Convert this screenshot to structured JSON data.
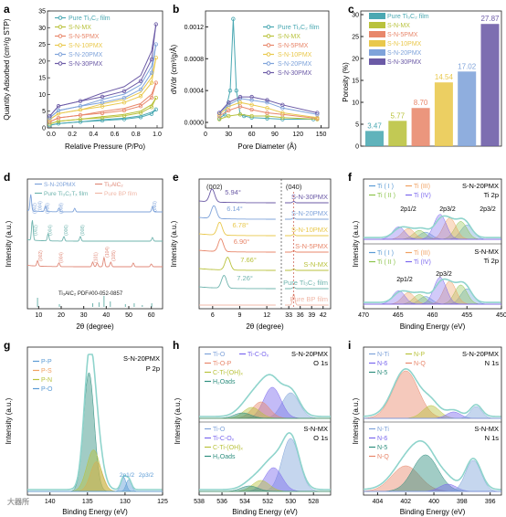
{
  "colors": {
    "pure": "#4aa8b2",
    "mx": "#b9c23c",
    "p5": "#e8876b",
    "p10": "#e9c84c",
    "p20": "#7fa3da",
    "p30": "#6b5aa6",
    "xrd_pure": "#6fb4ae",
    "max": "#e08a7a",
    "bp": "#f0b8a8",
    "axis": "#222222",
    "label": "#000000"
  },
  "panels": [
    {
      "id": "a",
      "letter": "a",
      "xlabel": "Relative Pressure (P/Po)",
      "ylabel": "Quantity Adsorbed (cm³/g STP)",
      "xticks": [
        "0.0",
        "0.2",
        "0.4",
        "0.6",
        "0.8",
        "1.0"
      ],
      "yticks": [
        "0",
        "5",
        "10",
        "15",
        "20",
        "25",
        "30",
        "35"
      ],
      "legend": [
        "Pure Ti₃C₂ film",
        "S-N-MX",
        "S-N-5PMX",
        "S-N-10PMX",
        "S-N-20PMX",
        "S-N-30PMX"
      ]
    },
    {
      "id": "b",
      "letter": "b",
      "xlabel": "Pore Diameter (Å)",
      "ylabel": "dV/dr (cm³/g/Å)",
      "xticks": [
        "0",
        "30",
        "60",
        "90",
        "120",
        "150"
      ],
      "yticks": [
        "0.0000",
        "0.0004",
        "0.0008",
        "0.0012"
      ],
      "legend": [
        "Pure Ti₃C₂ film",
        "S-N-MX",
        "S-N-5PMX",
        "S-N-10PMX",
        "S-N-20PMX",
        "S-N-30PMX"
      ]
    },
    {
      "id": "c",
      "letter": "c",
      "ylabel": "Porosity (%)",
      "yticks": [
        "0",
        "5",
        "10",
        "15",
        "20",
        "25",
        "30"
      ],
      "legend": [
        "Pure Ti₃C₂ film",
        "S-N-MX",
        "S-N-5PMX",
        "S-N-10PMX",
        "S-N-20PMX",
        "S-N-30PMX"
      ]
    },
    {
      "id": "d",
      "letter": "d",
      "xlabel": "2θ (degree)",
      "ylabel": "Intensity (a.u.)",
      "xticks": [
        "10",
        "20",
        "30",
        "40",
        "50",
        "60"
      ],
      "legend": [
        "S-N-20PMX",
        "Ti₃AlC₂",
        "Pure Ti₃C₂Tₓ film",
        "Pure BP film"
      ],
      "peaks_pure": [
        "(002)",
        "(004)",
        "(006)",
        "(008)"
      ],
      "peaks_max": [
        "(002)",
        "(004)",
        "(101)",
        "(104)",
        "(105)"
      ],
      "peaks_20": [
        "(002)",
        "(004)",
        "(006)",
        "(008)",
        "(060)"
      ],
      "pdf": "Ti₃AlC₂ PDF#00-052-0857"
    },
    {
      "id": "e",
      "letter": "e",
      "xlabel": "2θ (degree)",
      "ylabel": "Intensity (a.u.)",
      "xticks": [
        "6",
        "9",
        "12",
        "33",
        "36",
        "39",
        "42"
      ],
      "traces": [
        "S-N-30PMX",
        "S-N-20PMX",
        "S-N-10PMX",
        "S-N-5PMX",
        "S-N-MX",
        "Pure Ti₃C₂ film",
        "Pure BP film"
      ],
      "angles": [
        "5.94°",
        "6.14°",
        "6.78°",
        "6.90°",
        "7.66°",
        "7.26°"
      ],
      "miller": [
        "(002)",
        "(040)"
      ]
    },
    {
      "id": "f",
      "letter": "f",
      "xlabel": "Binding Energy (eV)",
      "ylabel": "Intensity (a.u.)",
      "xticks": [
        "470",
        "465",
        "460",
        "455",
        "450"
      ],
      "top": {
        "sample": "S-N-20PMX",
        "core": "Ti 2p",
        "labels": [
          "2p1/2",
          "2p3/2",
          "2p3/2"
        ]
      },
      "bottom": {
        "sample": "S-N-MX",
        "core": "Ti 2p",
        "labels": [
          "2p1/2",
          "2p3/2"
        ]
      },
      "legend": [
        "Ti ( I )",
        "Ti ( II )",
        "Ti (III)",
        "Ti (IV)"
      ]
    },
    {
      "id": "g",
      "letter": "g",
      "xlabel": "Binding Energy (eV)",
      "ylabel": "Intensity (a.u.)",
      "xticks": [
        "140",
        "135",
        "130",
        "125"
      ],
      "sample": "S-N-20PMX",
      "core": "P 2p",
      "legend": [
        "P-P",
        "P-S",
        "P-N",
        "P-O"
      ],
      "labels": [
        "2p1/2",
        "2p3/2"
      ]
    },
    {
      "id": "h",
      "letter": "h",
      "xlabel": "Binding Energy (eV)",
      "ylabel": "Intensity (a.u.)",
      "xticks": [
        "538",
        "536",
        "534",
        "532",
        "530",
        "528"
      ],
      "top": {
        "sample": "S-N-20PMX",
        "core": "O 1s",
        "legend": [
          "Ti-O",
          "Ti-C-Oₓ",
          "Ti-O-P",
          "C-Ti-(OH)ₓ",
          "H₂Oads"
        ]
      },
      "bottom": {
        "sample": "S-N-MX",
        "core": "O 1s",
        "legend": [
          "Ti-O",
          "Ti-C-Oₓ",
          "C-Ti-(OH)ₓ",
          "H₂Oads"
        ]
      }
    },
    {
      "id": "i",
      "letter": "i",
      "xlabel": "Binding Energy (eV)",
      "ylabel": "Intensity (a.u.)",
      "xticks": [
        "404",
        "402",
        "400",
        "398",
        "396"
      ],
      "top": {
        "sample": "S-N-20PMX",
        "core": "N 1s",
        "legend": [
          "N-Ti",
          "N-P",
          "N-6",
          "N-Q",
          "N-5"
        ]
      },
      "bottom": {
        "sample": "S-N-MX",
        "core": "N 1s",
        "legend": [
          "N-Ti",
          "N-6",
          "N-5",
          "N-Q"
        ]
      }
    }
  ],
  "chart_data": [
    {
      "panel": "a",
      "type": "line",
      "title": "",
      "xlabel": "Relative Pressure (P/Po)",
      "ylabel": "Quantity Adsorbed (cm³/g STP)",
      "xlim": [
        0,
        1.05
      ],
      "ylim": [
        0,
        35
      ],
      "series": [
        {
          "name": "Pure Ti₃C₂ film",
          "x": [
            0.02,
            0.1,
            0.3,
            0.5,
            0.7,
            0.85,
            0.95,
            0.99
          ],
          "y": [
            0.8,
            1.3,
            1.8,
            2.2,
            2.6,
            3.2,
            4.2,
            5.5
          ]
        },
        {
          "name": "S-N-MX",
          "x": [
            0.02,
            0.1,
            0.3,
            0.5,
            0.7,
            0.85,
            0.95,
            0.99
          ],
          "y": [
            1.2,
            2.0,
            2.6,
            3.0,
            3.6,
            4.5,
            6.2,
            9.0
          ]
        },
        {
          "name": "S-N-5PMX",
          "x": [
            0.02,
            0.1,
            0.3,
            0.5,
            0.7,
            0.85,
            0.95,
            0.99
          ],
          "y": [
            1.8,
            3.0,
            3.8,
            4.4,
            5.2,
            6.5,
            9.0,
            13.5
          ]
        },
        {
          "name": "S-N-10PMX",
          "x": [
            0.02,
            0.1,
            0.3,
            0.5,
            0.7,
            0.85,
            0.95,
            0.99
          ],
          "y": [
            2.5,
            4.3,
            5.4,
            6.4,
            7.6,
            9.5,
            13.5,
            21.0
          ]
        },
        {
          "name": "S-N-20PMX",
          "x": [
            0.02,
            0.1,
            0.3,
            0.5,
            0.7,
            0.85,
            0.95,
            0.99
          ],
          "y": [
            3.0,
            5.2,
            6.5,
            7.6,
            9.0,
            11.5,
            16.5,
            25.0
          ]
        },
        {
          "name": "S-N-30PMX",
          "x": [
            0.02,
            0.1,
            0.3,
            0.5,
            0.7,
            0.85,
            0.95,
            0.99
          ],
          "y": [
            3.5,
            6.5,
            8.0,
            9.3,
            11.0,
            14.0,
            20.5,
            31.0
          ]
        }
      ]
    },
    {
      "panel": "b",
      "type": "line",
      "title": "",
      "xlabel": "Pore Diameter (Å)",
      "ylabel": "dV/dr (cm³/g/Å)",
      "xlim": [
        0,
        160
      ],
      "ylim": [
        0,
        0.0014
      ],
      "series": [
        {
          "name": "Pure Ti₃C₂ film",
          "x": [
            18,
            25,
            32,
            36,
            40,
            45,
            50,
            60,
            80,
            100,
            140
          ],
          "y": [
            5e-05,
            0.0001,
            0.0004,
            0.0013,
            0.0004,
            0.0001,
            8e-05,
            6e-05,
            5e-05,
            4e-05,
            4e-05
          ]
        },
        {
          "name": "S-N-MX",
          "x": [
            18,
            30,
            45,
            60,
            80,
            100,
            145
          ],
          "y": [
            4e-05,
            8e-05,
            0.0001,
            8e-05,
            8e-05,
            6e-05,
            4e-05
          ]
        },
        {
          "name": "S-N-5PMX",
          "x": [
            18,
            30,
            45,
            60,
            80,
            100,
            145
          ],
          "y": [
            8e-05,
            0.00015,
            0.0002,
            0.00016,
            0.00012,
            0.0001,
            5e-05
          ]
        },
        {
          "name": "S-N-10PMX",
          "x": [
            18,
            30,
            45,
            60,
            80,
            100,
            145
          ],
          "y": [
            0.0001,
            0.0002,
            0.00025,
            0.00022,
            0.00018,
            0.00012,
            6e-05
          ]
        },
        {
          "name": "S-N-20PMX",
          "x": [
            18,
            30,
            45,
            60,
            80,
            100,
            145
          ],
          "y": [
            0.00012,
            0.00022,
            0.0003,
            0.00028,
            0.00025,
            0.00018,
            0.0001
          ]
        },
        {
          "name": "S-N-30PMX",
          "x": [
            18,
            30,
            45,
            60,
            80,
            100,
            145
          ],
          "y": [
            0.00012,
            0.00025,
            0.00032,
            0.00032,
            0.00028,
            0.00022,
            0.00012
          ]
        }
      ]
    },
    {
      "panel": "c",
      "type": "bar",
      "title": "",
      "ylabel": "Porosity (%)",
      "ylim": [
        0,
        30
      ],
      "categories": [
        "Pure Ti₃C₂ film",
        "S-N-MX",
        "S-N-5PMX",
        "S-N-10PMX",
        "S-N-20PMX",
        "S-N-30PMX"
      ],
      "values": [
        3.47,
        5.77,
        8.7,
        14.54,
        17.02,
        27.87
      ],
      "value_labels": [
        "3.47",
        "5.77",
        "8.70",
        "14.54",
        "17.02",
        "27.87"
      ]
    }
  ],
  "footer": {
    "watermark": "大器所"
  }
}
